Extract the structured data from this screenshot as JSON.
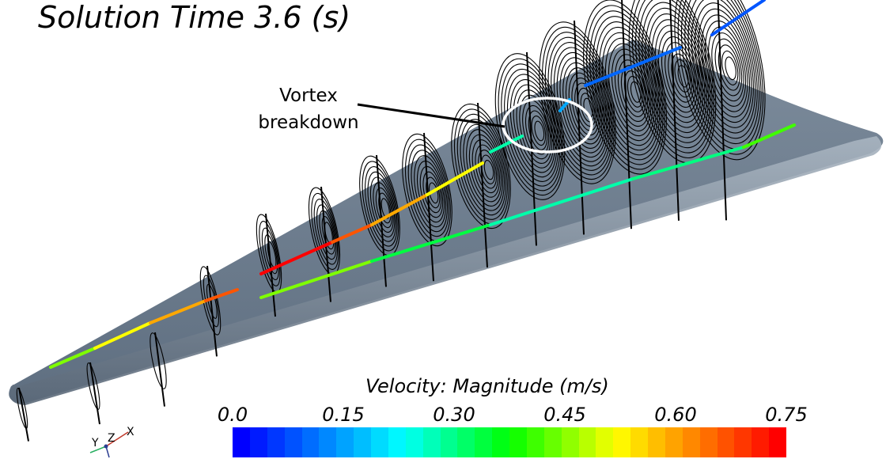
{
  "title": "Solution Time 3.6 (s)",
  "annotation": {
    "lines": [
      "Vortex",
      "breakdown"
    ]
  },
  "legend": {
    "title": "Velocity: Magnitude (m/s)",
    "ticks": [
      "0.0",
      "0.15",
      "0.30",
      "0.45",
      "0.60",
      "0.75"
    ],
    "range": [
      0.0,
      0.75
    ],
    "colors": [
      "#0000ff",
      "#0055ff",
      "#00a8ff",
      "#00ffff",
      "#00ff80",
      "#00ff00",
      "#80ff00",
      "#ffff00",
      "#ffa800",
      "#ff5500",
      "#ff0000"
    ]
  },
  "triad": {
    "x_label": "X",
    "y_label": "Y",
    "z_label": "Z"
  },
  "colors": {
    "wing": "#6f7f91",
    "wing_edge": "#8f9dab",
    "contour": "#000000",
    "highlight_ring": "#ffffff"
  }
}
